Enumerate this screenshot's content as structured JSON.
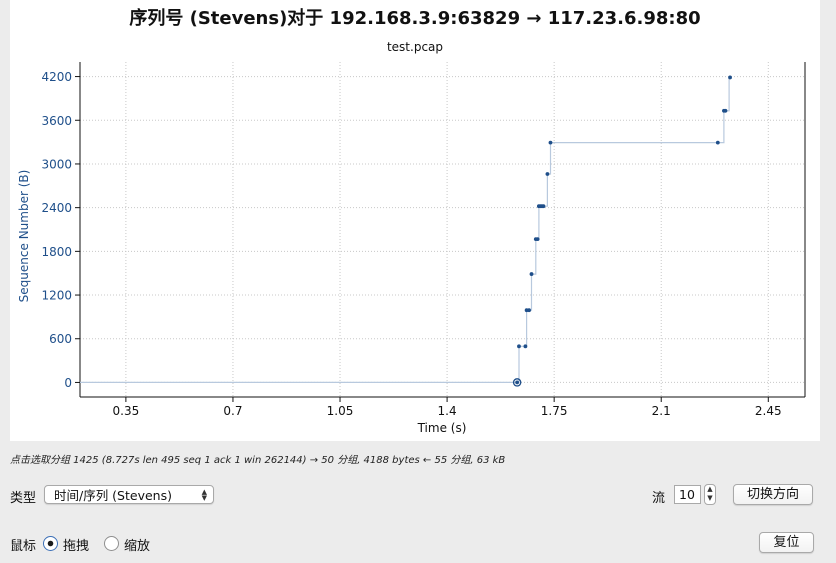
{
  "chart_data": {
    "type": "scatter",
    "title": "序列号 (Stevens)对于 192.168.3.9:63829 → 117.23.6.98:80",
    "subtitle": "test.pcap",
    "xlabel": "Time (s)",
    "ylabel": "Sequence Number (B)",
    "xlim": [
      0.2,
      2.57
    ],
    "ylim": [
      -200,
      4400
    ],
    "x_ticks": [
      "0.35",
      "0.7",
      "1.05",
      "1.4",
      "1.75",
      "2.1",
      "2.45"
    ],
    "y_ticks": [
      "0",
      "600",
      "1200",
      "1800",
      "2400",
      "3000",
      "3600",
      "4200"
    ],
    "grid": true,
    "points": [
      {
        "x": 1.629,
        "y": 0
      },
      {
        "x": 1.635,
        "y": 496
      },
      {
        "x": 1.656,
        "y": 496
      },
      {
        "x": 1.66,
        "y": 992
      },
      {
        "x": 1.668,
        "y": 992
      },
      {
        "x": 1.676,
        "y": 1488
      },
      {
        "x": 1.69,
        "y": 1968
      },
      {
        "x": 1.696,
        "y": 1968
      },
      {
        "x": 1.7,
        "y": 2420
      },
      {
        "x": 1.705,
        "y": 2420
      },
      {
        "x": 1.71,
        "y": 2420
      },
      {
        "x": 1.715,
        "y": 2420
      },
      {
        "x": 1.728,
        "y": 2862
      },
      {
        "x": 1.738,
        "y": 3293
      },
      {
        "x": 2.285,
        "y": 3293
      },
      {
        "x": 2.305,
        "y": 3730
      },
      {
        "x": 2.31,
        "y": 3730
      },
      {
        "x": 2.325,
        "y": 4188
      }
    ],
    "step_line": [
      [
        0.2,
        0
      ],
      [
        1.629,
        0
      ],
      [
        1.635,
        0
      ],
      [
        1.635,
        496
      ],
      [
        1.66,
        496
      ],
      [
        1.66,
        992
      ],
      [
        1.676,
        992
      ],
      [
        1.676,
        1488
      ],
      [
        1.69,
        1488
      ],
      [
        1.69,
        1968
      ],
      [
        1.7,
        1968
      ],
      [
        1.7,
        2420
      ],
      [
        1.728,
        2420
      ],
      [
        1.728,
        2862
      ],
      [
        1.738,
        2862
      ],
      [
        1.738,
        3293
      ],
      [
        2.29,
        3293
      ],
      [
        2.305,
        3293
      ],
      [
        2.305,
        3730
      ],
      [
        2.322,
        3730
      ],
      [
        2.322,
        4188
      ]
    ],
    "selected_point": {
      "x": 1.629,
      "y": 0
    },
    "series_color": "#1f4f8a",
    "line_color": "#b8c9de"
  },
  "status_text": "点击选取分组 1425 (8.727s len 495 seq 1 ack 1 win 262144) → 50 分组, 4188 bytes ← 55 分组, 63 kB",
  "controls": {
    "type_label": "类型",
    "type_value": "时间/序列 (Stevens)",
    "stream_label": "流",
    "stream_value": "10",
    "switch_direction": "切换方向",
    "mouse_label": "鼠标",
    "drag_label": "拖拽",
    "zoom_label": "缩放",
    "reset": "复位"
  }
}
